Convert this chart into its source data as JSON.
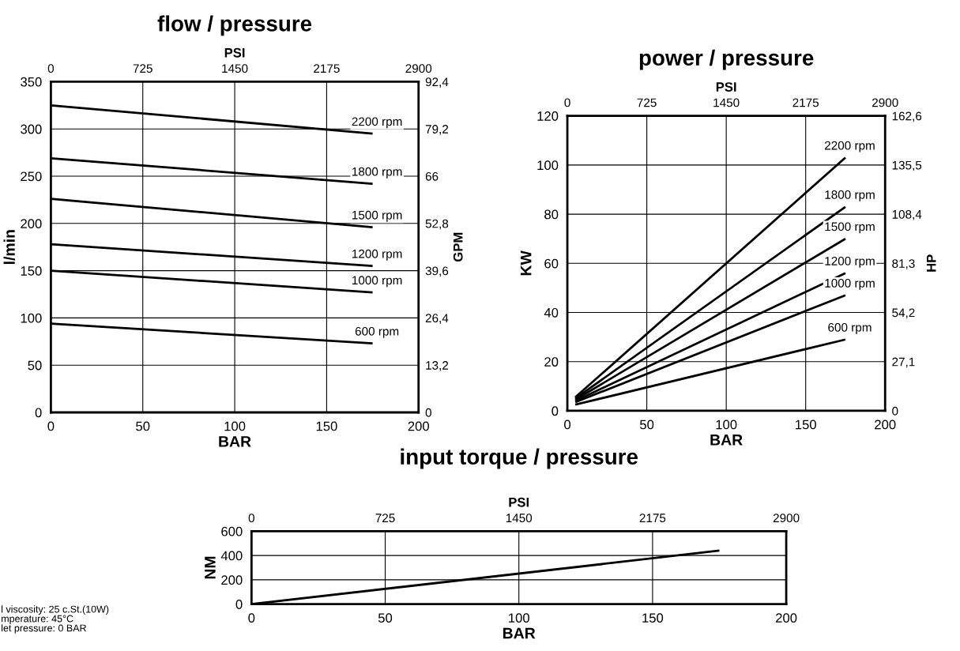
{
  "chart_data": [
    {
      "type": "line",
      "title": "flow / pressure",
      "xlabel": "BAR",
      "x2label": "PSI",
      "ylabel": "l/min",
      "y2label": "GPM",
      "grid": true,
      "legend": false,
      "marker": "none",
      "line_style": "solid",
      "xlim": [
        0,
        200
      ],
      "xticks": [
        0,
        50,
        100,
        150,
        200
      ],
      "ylim": [
        0,
        350
      ],
      "yticks": [
        0,
        50,
        100,
        150,
        200,
        250,
        300,
        350
      ],
      "x2lim": [
        0,
        2900
      ],
      "x2ticks": [
        0,
        725,
        1450,
        2175,
        2900
      ],
      "y2lim": [
        0,
        92.4
      ],
      "y2ticks": [
        0,
        {
          "value": 13.2,
          "label": "13,2"
        },
        {
          "value": 26.4,
          "label": "26,4"
        },
        {
          "value": 39.6,
          "label": "39,6"
        },
        {
          "value": 52.8,
          "label": "52,8"
        },
        66,
        {
          "value": 79.2,
          "label": "79,2"
        },
        {
          "value": 92.4,
          "label": "92,4"
        }
      ],
      "x": [
        0,
        175
      ],
      "series": [
        {
          "name": "2200 rpm",
          "color": "#000000",
          "values": [
            325,
            295
          ]
        },
        {
          "name": "1800 rpm",
          "color": "#000000",
          "values": [
            269,
            242
          ]
        },
        {
          "name": "1500 rpm",
          "color": "#000000",
          "values": [
            226,
            196
          ]
        },
        {
          "name": "1200 rpm",
          "color": "#000000",
          "values": [
            178,
            155
          ]
        },
        {
          "name": "1000 rpm",
          "color": "#000000",
          "values": [
            150,
            127
          ]
        },
        {
          "name": "600 rpm",
          "color": "#000000",
          "values": [
            94,
            73
          ]
        }
      ]
    },
    {
      "type": "line",
      "title": "power / pressure",
      "xlabel": "BAR",
      "x2label": "PSI",
      "ylabel": "KW",
      "y2label": "HP",
      "grid": true,
      "legend": false,
      "marker": "none",
      "line_style": "solid",
      "xlim": [
        0,
        200
      ],
      "xticks": [
        0,
        50,
        100,
        150,
        200
      ],
      "ylim": [
        0,
        120
      ],
      "yticks": [
        0,
        20,
        40,
        60,
        80,
        100,
        120
      ],
      "x2lim": [
        0,
        2900
      ],
      "x2ticks": [
        0,
        725,
        1450,
        2175,
        2900
      ],
      "y2lim": [
        0,
        162.6
      ],
      "y2ticks": [
        0,
        {
          "value": 27.1,
          "label": "27,1"
        },
        {
          "value": 54.2,
          "label": "54,2"
        },
        {
          "value": 81.3,
          "label": "81,3"
        },
        {
          "value": 108.4,
          "label": "108,4"
        },
        {
          "value": 135.5,
          "label": "135,5"
        },
        {
          "value": 162.6,
          "label": "162,6"
        }
      ],
      "x": [
        5,
        175
      ],
      "series": [
        {
          "name": "2200 rpm",
          "color": "#000000",
          "values": [
            5.5,
            103
          ]
        },
        {
          "name": "1800 rpm",
          "color": "#000000",
          "values": [
            5,
            83
          ]
        },
        {
          "name": "1500 rpm",
          "color": "#000000",
          "values": [
            4.5,
            70
          ]
        },
        {
          "name": "1200 rpm",
          "color": "#000000",
          "values": [
            4,
            56
          ]
        },
        {
          "name": "1000 rpm",
          "color": "#000000",
          "values": [
            3.5,
            47
          ]
        },
        {
          "name": "600 rpm",
          "color": "#000000",
          "values": [
            2.5,
            29
          ]
        }
      ]
    },
    {
      "type": "line",
      "title": "input torque / pressure",
      "xlabel": "BAR",
      "x2label": "PSI",
      "ylabel": "NM",
      "grid": true,
      "legend": false,
      "marker": "none",
      "line_style": "solid",
      "xlim": [
        0,
        200
      ],
      "xticks": [
        0,
        50,
        100,
        150,
        200
      ],
      "ylim": [
        0,
        600
      ],
      "yticks": [
        0,
        200,
        400,
        600
      ],
      "x2lim": [
        0,
        2900
      ],
      "x2ticks": [
        0,
        725,
        1450,
        2175,
        2900
      ],
      "x": [
        0,
        175
      ],
      "series": [
        {
          "color": "#000000",
          "values": [
            0,
            440
          ]
        }
      ],
      "annotations": [
        "l viscosity: 25 c.St.(10W)",
        "mperature: 45°C",
        "let pressure: 0 BAR"
      ]
    }
  ]
}
